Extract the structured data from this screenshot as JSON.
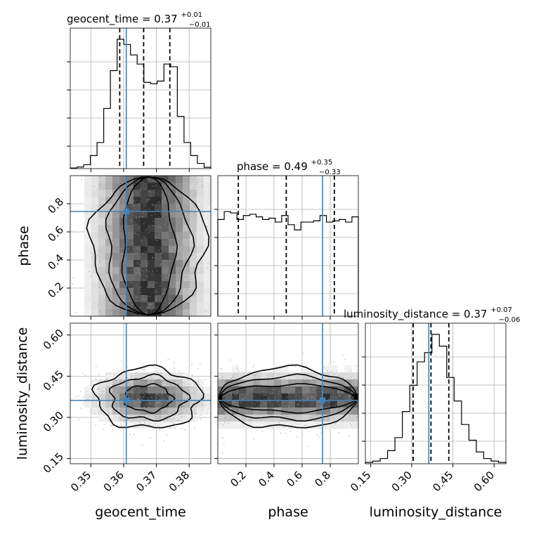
{
  "chart_data": {
    "type": "corner",
    "parameters": [
      "geocent_time",
      "phase",
      "luminosity_distance"
    ],
    "truths": {
      "geocent_time": 0.3608,
      "phase": 0.745,
      "luminosity_distance": 0.362
    },
    "titles": [
      {
        "param": "geocent_time",
        "median": "0.37",
        "plus": "+0.01",
        "minus": "−0.01",
        "label": "geocent_time = 0.37"
      },
      {
        "param": "phase",
        "median": "0.49",
        "plus": "+0.35",
        "minus": "−0.33",
        "label": "phase = 0.49"
      },
      {
        "param": "luminosity_distance",
        "median": "0.37",
        "plus": "+0.07",
        "minus": "−0.06",
        "label": "luminosity_distance = 0.37"
      }
    ],
    "quantiles": {
      "geocent_time": [
        0.3588,
        0.3661,
        0.3741
      ],
      "phase": [
        0.146,
        0.487,
        0.829
      ],
      "luminosity_distance": [
        0.305,
        0.37,
        0.435
      ]
    },
    "ranges": {
      "geocent_time": [
        0.3437,
        0.3866
      ],
      "phase": [
        0.0,
        1.0
      ],
      "luminosity_distance": [
        0.131,
        0.643
      ]
    },
    "ticks": {
      "geocent_time": [
        {
          "v": 0.35,
          "label": "0.35"
        },
        {
          "v": 0.36,
          "label": "0.36"
        },
        {
          "v": 0.37,
          "label": "0.37"
        },
        {
          "v": 0.38,
          "label": "0.38"
        }
      ],
      "phase": [
        {
          "v": 0.2,
          "label": "0.2"
        },
        {
          "v": 0.4,
          "label": "0.4"
        },
        {
          "v": 0.6,
          "label": "0.6"
        },
        {
          "v": 0.8,
          "label": "0.8"
        }
      ],
      "luminosity_distance": [
        {
          "v": 0.15,
          "label": "0.15"
        },
        {
          "v": 0.3,
          "label": "0.30"
        },
        {
          "v": 0.45,
          "label": "0.45"
        },
        {
          "v": 0.6,
          "label": "0.60"
        }
      ]
    },
    "histograms": {
      "geocent_time": [
        0.005,
        0.012,
        0.03,
        0.1,
        0.2,
        0.46,
        0.75,
        0.99,
        0.95,
        0.87,
        0.8,
        0.66,
        0.65,
        0.67,
        0.8,
        0.78,
        0.4,
        0.2,
        0.1,
        0.04,
        0.01
      ],
      "phase": [
        0.74,
        0.8,
        0.79,
        0.74,
        0.77,
        0.78,
        0.76,
        0.74,
        0.75,
        0.72,
        0.77,
        0.7,
        0.66,
        0.72,
        0.72,
        0.73,
        0.77,
        0.72,
        0.73,
        0.74,
        0.72,
        0.76
      ],
      "luminosity_distance": [
        0.01,
        0.02,
        0.04,
        0.1,
        0.2,
        0.4,
        0.6,
        0.78,
        0.85,
        0.99,
        0.9,
        0.66,
        0.48,
        0.3,
        0.18,
        0.09,
        0.04,
        0.02,
        0.01
      ]
    },
    "grid": true,
    "colors": {
      "truth": "#4682b4",
      "contour": "#000000",
      "histogram": "#000000"
    }
  }
}
